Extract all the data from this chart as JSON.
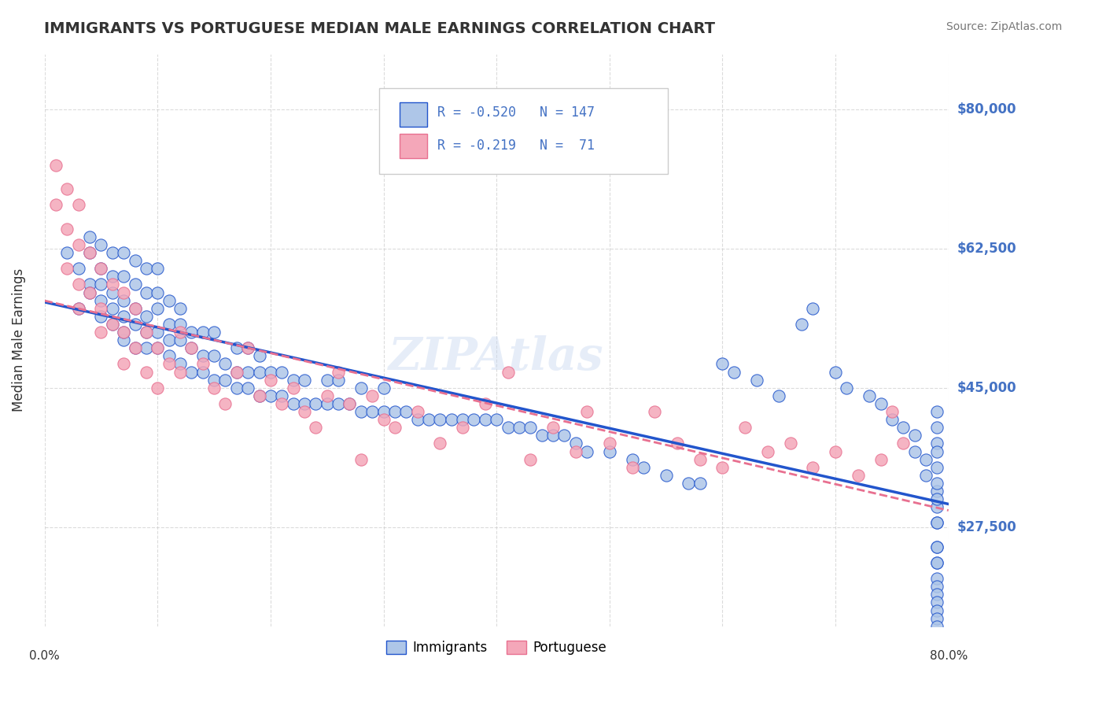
{
  "title": "IMMIGRANTS VS PORTUGUESE MEDIAN MALE EARNINGS CORRELATION CHART",
  "source_text": "Source: ZipAtlas.com",
  "xlabel": "",
  "ylabel": "Median Male Earnings",
  "xlim": [
    0.0,
    0.8
  ],
  "ylim": [
    15000,
    87000
  ],
  "yticks": [
    27500,
    45000,
    62500,
    80000
  ],
  "ytick_labels": [
    "$27,500",
    "$45,000",
    "$62,500",
    "$80,000"
  ],
  "xticks": [
    0.0,
    0.1,
    0.2,
    0.3,
    0.4,
    0.5,
    0.6,
    0.7,
    0.8
  ],
  "xtick_labels": [
    "0.0%",
    "",
    "",
    "",
    "",
    "",
    "",
    "",
    "80.0%"
  ],
  "legend_immigrants_R": "-0.520",
  "legend_immigrants_N": "147",
  "legend_portuguese_R": "-0.219",
  "legend_portuguese_N": "71",
  "immigrants_color": "#aec6e8",
  "portuguese_color": "#f4a7b9",
  "immigrants_line_color": "#2255cc",
  "portuguese_line_color": "#e87090",
  "watermark": "ZIPAtlas",
  "grid_color": "#cccccc",
  "axis_label_color": "#4472c4",
  "immigrants_x": [
    0.02,
    0.03,
    0.03,
    0.04,
    0.04,
    0.04,
    0.04,
    0.05,
    0.05,
    0.05,
    0.05,
    0.05,
    0.06,
    0.06,
    0.06,
    0.06,
    0.06,
    0.07,
    0.07,
    0.07,
    0.07,
    0.07,
    0.07,
    0.08,
    0.08,
    0.08,
    0.08,
    0.08,
    0.09,
    0.09,
    0.09,
    0.09,
    0.09,
    0.1,
    0.1,
    0.1,
    0.1,
    0.1,
    0.11,
    0.11,
    0.11,
    0.11,
    0.12,
    0.12,
    0.12,
    0.12,
    0.13,
    0.13,
    0.13,
    0.14,
    0.14,
    0.14,
    0.15,
    0.15,
    0.15,
    0.16,
    0.16,
    0.17,
    0.17,
    0.17,
    0.18,
    0.18,
    0.18,
    0.19,
    0.19,
    0.19,
    0.2,
    0.2,
    0.21,
    0.21,
    0.22,
    0.22,
    0.23,
    0.23,
    0.24,
    0.25,
    0.25,
    0.26,
    0.26,
    0.27,
    0.28,
    0.28,
    0.29,
    0.3,
    0.3,
    0.31,
    0.32,
    0.33,
    0.34,
    0.35,
    0.36,
    0.37,
    0.38,
    0.39,
    0.4,
    0.41,
    0.42,
    0.43,
    0.44,
    0.45,
    0.46,
    0.47,
    0.48,
    0.5,
    0.52,
    0.53,
    0.55,
    0.57,
    0.58,
    0.6,
    0.61,
    0.63,
    0.65,
    0.67,
    0.68,
    0.7,
    0.71,
    0.73,
    0.74,
    0.75,
    0.76,
    0.77,
    0.77,
    0.78,
    0.78,
    0.79,
    0.79,
    0.79,
    0.79,
    0.79,
    0.79,
    0.79,
    0.79,
    0.79,
    0.79,
    0.79,
    0.79,
    0.79,
    0.79,
    0.79,
    0.79,
    0.79,
    0.79,
    0.79,
    0.79,
    0.79,
    0.79
  ],
  "immigrants_y": [
    62000,
    55000,
    60000,
    58000,
    57000,
    62000,
    64000,
    54000,
    56000,
    58000,
    60000,
    63000,
    53000,
    55000,
    57000,
    59000,
    62000,
    51000,
    52000,
    54000,
    56000,
    59000,
    62000,
    50000,
    53000,
    55000,
    58000,
    61000,
    50000,
    52000,
    54000,
    57000,
    60000,
    50000,
    52000,
    55000,
    57000,
    60000,
    49000,
    51000,
    53000,
    56000,
    48000,
    51000,
    53000,
    55000,
    47000,
    50000,
    52000,
    47000,
    49000,
    52000,
    46000,
    49000,
    52000,
    46000,
    48000,
    45000,
    47000,
    50000,
    45000,
    47000,
    50000,
    44000,
    47000,
    49000,
    44000,
    47000,
    44000,
    47000,
    43000,
    46000,
    43000,
    46000,
    43000,
    43000,
    46000,
    43000,
    46000,
    43000,
    42000,
    45000,
    42000,
    42000,
    45000,
    42000,
    42000,
    41000,
    41000,
    41000,
    41000,
    41000,
    41000,
    41000,
    41000,
    40000,
    40000,
    40000,
    39000,
    39000,
    39000,
    38000,
    37000,
    37000,
    36000,
    35000,
    34000,
    33000,
    33000,
    48000,
    47000,
    46000,
    44000,
    53000,
    55000,
    47000,
    45000,
    44000,
    43000,
    41000,
    40000,
    39000,
    37000,
    36000,
    34000,
    32000,
    30000,
    28000,
    25000,
    23000,
    42000,
    40000,
    38000,
    37000,
    35000,
    33000,
    31000,
    28000,
    25000,
    23000,
    21000,
    20000,
    19000,
    18000,
    17000,
    16000,
    15000
  ],
  "portuguese_x": [
    0.01,
    0.01,
    0.02,
    0.02,
    0.02,
    0.03,
    0.03,
    0.03,
    0.03,
    0.04,
    0.04,
    0.05,
    0.05,
    0.05,
    0.06,
    0.06,
    0.07,
    0.07,
    0.07,
    0.08,
    0.08,
    0.09,
    0.09,
    0.1,
    0.1,
    0.11,
    0.12,
    0.12,
    0.13,
    0.14,
    0.15,
    0.16,
    0.17,
    0.18,
    0.19,
    0.2,
    0.21,
    0.22,
    0.23,
    0.24,
    0.25,
    0.26,
    0.27,
    0.28,
    0.29,
    0.3,
    0.31,
    0.33,
    0.35,
    0.37,
    0.39,
    0.41,
    0.43,
    0.45,
    0.47,
    0.48,
    0.5,
    0.52,
    0.54,
    0.56,
    0.58,
    0.6,
    0.62,
    0.64,
    0.66,
    0.68,
    0.7,
    0.72,
    0.74,
    0.75,
    0.76
  ],
  "portuguese_y": [
    73000,
    68000,
    70000,
    65000,
    60000,
    68000,
    63000,
    58000,
    55000,
    62000,
    57000,
    60000,
    55000,
    52000,
    58000,
    53000,
    57000,
    52000,
    48000,
    55000,
    50000,
    52000,
    47000,
    50000,
    45000,
    48000,
    52000,
    47000,
    50000,
    48000,
    45000,
    43000,
    47000,
    50000,
    44000,
    46000,
    43000,
    45000,
    42000,
    40000,
    44000,
    47000,
    43000,
    36000,
    44000,
    41000,
    40000,
    42000,
    38000,
    40000,
    43000,
    47000,
    36000,
    40000,
    37000,
    42000,
    38000,
    35000,
    42000,
    38000,
    36000,
    35000,
    40000,
    37000,
    38000,
    35000,
    37000,
    34000,
    36000,
    42000,
    38000
  ]
}
